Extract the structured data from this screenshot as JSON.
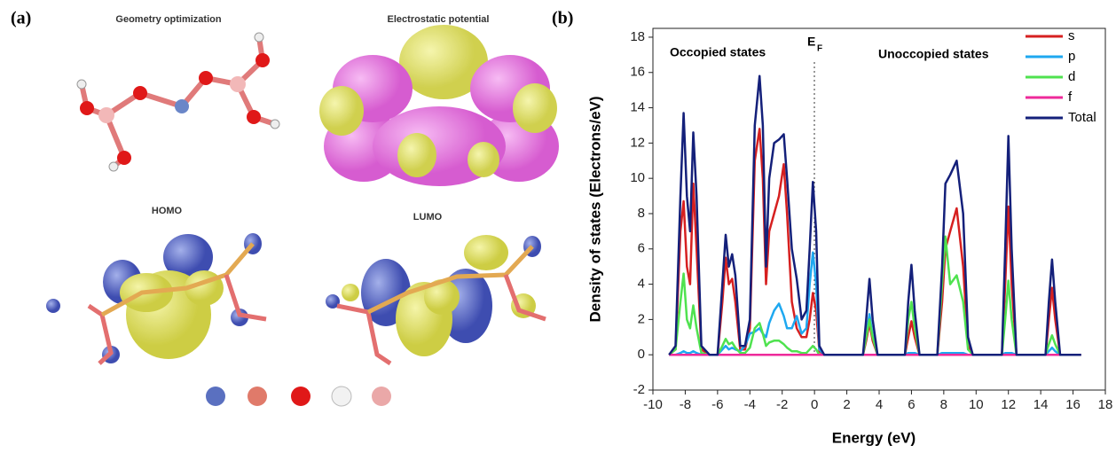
{
  "panel_a": {
    "label": "(a)",
    "titles": [
      "Geometry optimization",
      "Electrostatic potential",
      "HOMO",
      "LUMO"
    ]
  },
  "chart_data": {
    "type": "line",
    "label": "(b)",
    "xlabel": "Energy (eV)",
    "ylabel": "Density of states (Electrons/eV)",
    "annotations": [
      "Occopied states",
      "Unoccopied states"
    ],
    "fermi": {
      "text": "E",
      "sub": "F"
    },
    "xlim": [
      -10,
      18
    ],
    "xticks": [
      -10,
      -8,
      -6,
      -4,
      -2,
      0,
      2,
      4,
      6,
      8,
      10,
      12,
      14,
      16,
      18
    ],
    "ylim": [
      -2,
      18.5
    ],
    "yticks": [
      -2,
      0,
      2,
      4,
      6,
      8,
      10,
      12,
      14,
      16,
      18
    ],
    "legend": "upper right",
    "x": [
      -9.0,
      -8.6,
      -8.3,
      -8.1,
      -7.9,
      -7.7,
      -7.5,
      -7.3,
      -7.0,
      -6.5,
      -6.0,
      -5.7,
      -5.5,
      -5.3,
      -5.1,
      -4.9,
      -4.6,
      -4.3,
      -4.0,
      -3.7,
      -3.4,
      -3.2,
      -3.0,
      -2.8,
      -2.5,
      -2.2,
      -1.9,
      -1.7,
      -1.4,
      -1.1,
      -0.8,
      -0.5,
      -0.3,
      -0.1,
      0.1,
      0.3,
      0.6,
      3.0,
      3.2,
      3.4,
      3.6,
      3.9,
      5.6,
      5.8,
      6.0,
      6.2,
      6.5,
      7.6,
      7.9,
      8.1,
      8.4,
      8.8,
      9.2,
      9.5,
      9.8,
      11.6,
      11.8,
      12.0,
      12.2,
      12.5,
      14.3,
      14.5,
      14.7,
      14.9,
      15.2,
      16.5
    ],
    "series": [
      {
        "name": "s",
        "color": "#d62020",
        "values": [
          0,
          0.3,
          7,
          8.7,
          5,
          4,
          9.7,
          6,
          0.3,
          0,
          0,
          3,
          5.5,
          4,
          4.3,
          3,
          0.3,
          0.3,
          1.5,
          11,
          12.8,
          10,
          4,
          7,
          8,
          9,
          10.8,
          8,
          3,
          1.5,
          1,
          1,
          2,
          3.5,
          2.5,
          0.2,
          0,
          0,
          0.8,
          1.8,
          0.8,
          0,
          0,
          1,
          1.9,
          1,
          0,
          0,
          3,
          6,
          7,
          8.3,
          5,
          0.5,
          0,
          0,
          4,
          8.4,
          4,
          0,
          0,
          2,
          3.8,
          2,
          0,
          0
        ]
      },
      {
        "name": "p",
        "color": "#1ea8f0",
        "values": [
          0,
          0,
          0.1,
          0.2,
          0.1,
          0.1,
          0.2,
          0.1,
          0,
          0,
          0,
          0.3,
          0.5,
          0.3,
          0.4,
          0.3,
          0.2,
          0.5,
          1.2,
          1.3,
          1.5,
          1.2,
          1.0,
          1.8,
          2.5,
          2.9,
          2.2,
          1.5,
          1.5,
          2.2,
          1.2,
          1.5,
          4,
          5.8,
          4,
          0.3,
          0,
          0,
          1.2,
          2.3,
          1.1,
          0,
          0,
          0.1,
          0.1,
          0.1,
          0,
          0,
          0.1,
          0.1,
          0.1,
          0.1,
          0.1,
          0,
          0,
          0,
          0.1,
          0.1,
          0.1,
          0,
          0,
          0.2,
          0.4,
          0.2,
          0,
          0
        ]
      },
      {
        "name": "d",
        "color": "#4fe24f",
        "values": [
          0,
          0.3,
          3,
          4.6,
          2,
          1.5,
          2.8,
          1.5,
          0.1,
          0,
          0,
          0.5,
          0.9,
          0.6,
          0.7,
          0.4,
          0.1,
          0.1,
          0.4,
          1.5,
          1.8,
          1.2,
          0.5,
          0.7,
          0.8,
          0.8,
          0.6,
          0.4,
          0.2,
          0.2,
          0.1,
          0.1,
          0.3,
          0.5,
          0.3,
          0,
          0,
          0,
          1,
          2,
          1,
          0,
          0,
          2,
          3,
          1.5,
          0,
          0,
          4,
          6.7,
          4,
          4.5,
          3,
          0.3,
          0,
          0,
          2,
          4.2,
          2,
          0,
          0,
          0.6,
          1.1,
          0.6,
          0,
          0
        ]
      },
      {
        "name": "f",
        "color": "#ee2a9a",
        "values": [
          0,
          0,
          0,
          0,
          0,
          0,
          0,
          0,
          0,
          0,
          0,
          0,
          0,
          0,
          0,
          0,
          0,
          0,
          0,
          0,
          0,
          0,
          0,
          0,
          0,
          0,
          0,
          0,
          0,
          0,
          0,
          0,
          0,
          0,
          0,
          0,
          0,
          0,
          0,
          0,
          0,
          0,
          0,
          0,
          0,
          0,
          0,
          0,
          0,
          0,
          0,
          0,
          0,
          0,
          0,
          0,
          0,
          0,
          0,
          0,
          0,
          0,
          0,
          0,
          0,
          0
        ]
      },
      {
        "name": "Total",
        "color": "#14207a",
        "values": [
          0,
          0.5,
          9,
          13.7,
          9,
          7,
          12.6,
          9,
          0.5,
          0,
          0,
          4,
          6.8,
          5,
          5.7,
          4.5,
          0.5,
          0.5,
          2,
          13,
          15.8,
          13,
          5,
          10,
          12,
          12.2,
          12.5,
          10,
          6,
          4.3,
          2,
          2.5,
          6,
          9.8,
          7,
          0.5,
          0,
          0,
          2,
          4.3,
          2,
          0,
          0,
          3,
          5.1,
          2.5,
          0,
          0,
          5,
          9.7,
          10.2,
          11,
          8,
          1,
          0,
          0,
          6,
          12.4,
          6,
          0,
          0,
          3,
          5.4,
          3,
          0,
          0
        ]
      }
    ]
  }
}
